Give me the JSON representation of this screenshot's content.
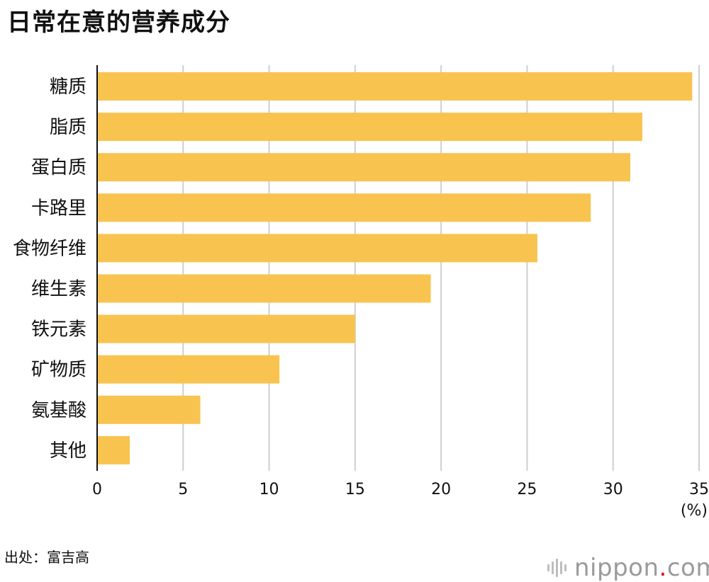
{
  "chart_data": {
    "type": "bar",
    "orientation": "horizontal",
    "title": "日常在意的营养成分",
    "categories": [
      "糖质",
      "脂质",
      "蛋白质",
      "卡路里",
      "食物纤维",
      "维生素",
      "铁元素",
      "矿物质",
      "氨基酸",
      "其他"
    ],
    "values": [
      34.6,
      31.7,
      31.0,
      28.7,
      25.6,
      19.4,
      15.0,
      10.6,
      6.0,
      1.9
    ],
    "xlim": [
      0,
      35
    ],
    "xticks": [
      "0",
      "5",
      "10",
      "15",
      "20",
      "25",
      "30",
      "35"
    ],
    "unit": "(%)",
    "grid": true,
    "bar_color": "#f8c44f"
  },
  "source": "出处：富吉高",
  "brand": {
    "name": "nippon",
    "dot": ".",
    "tld": "com",
    "dot_color": "#e2001a"
  }
}
